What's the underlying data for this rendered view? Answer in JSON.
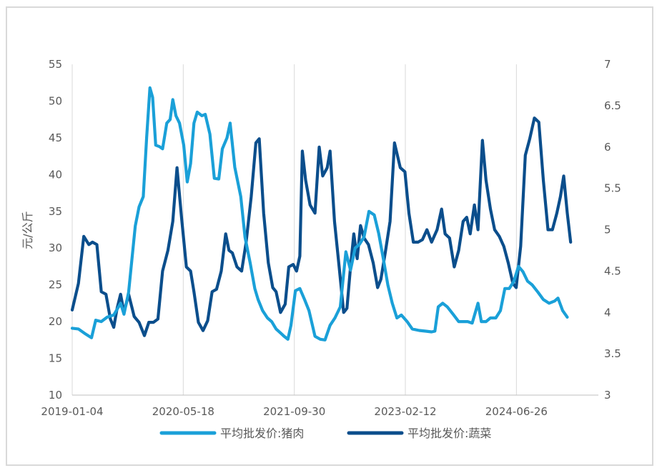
{
  "chart_data": {
    "type": "line",
    "title": "",
    "ylabel": "元/公斤",
    "ylim": [
      10,
      55
    ],
    "y_ticks": [
      "10",
      "15",
      "20",
      "25",
      "30",
      "35",
      "40",
      "45",
      "50",
      "55"
    ],
    "y2lim": [
      3,
      7
    ],
    "y2_ticks": [
      "3",
      "3.5",
      "4",
      "4.5",
      "5",
      "5.5",
      "6",
      "6.5",
      "7"
    ],
    "x_tick_labels": [
      "2019-01-04",
      "2020-05-18",
      "2021-09-30",
      "2023-02-12",
      "2024-06-26"
    ],
    "xlim": [
      "2019-01-04",
      "2025-06-30"
    ],
    "grid": "vertical",
    "legend_position": "bottom",
    "series": [
      {
        "name": "平均批发价:猪肉",
        "axis": "left",
        "color": "#1aa0d8",
        "points": [
          [
            "2019-01-04",
            19.1
          ],
          [
            "2019-02-01",
            19.0
          ],
          [
            "2019-03-01",
            18.4
          ],
          [
            "2019-04-01",
            17.8
          ],
          [
            "2019-04-20",
            20.2
          ],
          [
            "2019-05-15",
            20.0
          ],
          [
            "2019-06-10",
            20.6
          ],
          [
            "2019-07-10",
            20.9
          ],
          [
            "2019-08-10",
            22.5
          ],
          [
            "2019-08-25",
            21.0
          ],
          [
            "2019-09-15",
            24.0
          ],
          [
            "2019-10-15",
            33.0
          ],
          [
            "2019-11-01",
            35.6
          ],
          [
            "2019-11-20",
            37.0
          ],
          [
            "2019-12-05",
            45.0
          ],
          [
            "2019-12-20",
            51.8
          ],
          [
            "2020-01-01",
            50.5
          ],
          [
            "2020-01-15",
            44.0
          ],
          [
            "2020-02-01",
            43.8
          ],
          [
            "2020-02-15",
            43.5
          ],
          [
            "2020-03-05",
            47.0
          ],
          [
            "2020-03-20",
            47.5
          ],
          [
            "2020-04-01",
            50.2
          ],
          [
            "2020-04-15",
            48.0
          ],
          [
            "2020-05-01",
            47.0
          ],
          [
            "2020-05-20",
            44.0
          ],
          [
            "2020-06-05",
            39.0
          ],
          [
            "2020-06-20",
            41.5
          ],
          [
            "2020-07-05",
            47.0
          ],
          [
            "2020-07-20",
            48.5
          ],
          [
            "2020-08-10",
            48.0
          ],
          [
            "2020-08-25",
            48.2
          ],
          [
            "2020-09-15",
            45.5
          ],
          [
            "2020-10-05",
            39.5
          ],
          [
            "2020-10-25",
            39.4
          ],
          [
            "2020-11-10",
            43.5
          ],
          [
            "2020-12-01",
            45.0
          ],
          [
            "2020-12-15",
            47.0
          ],
          [
            "2021-01-05",
            41.0
          ],
          [
            "2021-02-01",
            37.0
          ],
          [
            "2021-02-20",
            31.5
          ],
          [
            "2021-03-15",
            28.0
          ],
          [
            "2021-04-05",
            24.5
          ],
          [
            "2021-04-20",
            23.0
          ],
          [
            "2021-05-10",
            21.5
          ],
          [
            "2021-06-01",
            20.5
          ],
          [
            "2021-06-20",
            20.0
          ],
          [
            "2021-07-10",
            19.0
          ],
          [
            "2021-08-01",
            18.4
          ],
          [
            "2021-08-15",
            18.0
          ],
          [
            "2021-09-01",
            17.6
          ],
          [
            "2021-09-15",
            19.5
          ],
          [
            "2021-10-05",
            24.2
          ],
          [
            "2021-10-25",
            24.5
          ],
          [
            "2021-11-15",
            23.0
          ],
          [
            "2021-12-05",
            21.5
          ],
          [
            "2022-01-01",
            18.0
          ],
          [
            "2022-01-25",
            17.6
          ],
          [
            "2022-02-15",
            17.5
          ],
          [
            "2022-03-10",
            19.5
          ],
          [
            "2022-04-01",
            20.5
          ],
          [
            "2022-04-25",
            22.0
          ],
          [
            "2022-05-20",
            29.5
          ],
          [
            "2022-06-10",
            27.0
          ],
          [
            "2022-07-01",
            30.0
          ],
          [
            "2022-07-20",
            30.5
          ],
          [
            "2022-08-10",
            31.5
          ],
          [
            "2022-09-01",
            35.0
          ],
          [
            "2022-09-25",
            34.5
          ],
          [
            "2022-10-15",
            32.0
          ],
          [
            "2022-11-05",
            28.5
          ],
          [
            "2022-11-25",
            25.0
          ],
          [
            "2022-12-15",
            22.5
          ],
          [
            "2023-01-05",
            20.5
          ],
          [
            "2023-01-25",
            20.9
          ],
          [
            "2023-02-20",
            20.0
          ],
          [
            "2023-03-15",
            19.0
          ],
          [
            "2023-04-15",
            18.8
          ],
          [
            "2023-05-15",
            18.7
          ],
          [
            "2023-06-10",
            18.6
          ],
          [
            "2023-06-25",
            18.7
          ],
          [
            "2023-07-10",
            22.0
          ],
          [
            "2023-07-30",
            22.5
          ],
          [
            "2023-08-20",
            22.0
          ],
          [
            "2023-09-15",
            21.0
          ],
          [
            "2023-10-10",
            20.0
          ],
          [
            "2023-11-01",
            20.0
          ],
          [
            "2023-11-20",
            20.0
          ],
          [
            "2023-12-10",
            19.8
          ],
          [
            "2024-01-05",
            22.5
          ],
          [
            "2024-01-20",
            20.0
          ],
          [
            "2024-02-10",
            20.0
          ],
          [
            "2024-03-01",
            20.5
          ],
          [
            "2024-03-25",
            20.5
          ],
          [
            "2024-04-15",
            21.5
          ],
          [
            "2024-05-05",
            24.5
          ],
          [
            "2024-05-25",
            24.5
          ],
          [
            "2024-06-15",
            25.5
          ],
          [
            "2024-07-05",
            27.5
          ],
          [
            "2024-07-25",
            26.8
          ],
          [
            "2024-08-15",
            25.5
          ],
          [
            "2024-09-05",
            25.0
          ],
          [
            "2024-10-01",
            24.0
          ],
          [
            "2024-10-25",
            23.0
          ],
          [
            "2024-11-20",
            22.5
          ],
          [
            "2024-12-15",
            22.8
          ],
          [
            "2024-12-30",
            23.2
          ],
          [
            "2025-01-20",
            21.5
          ],
          [
            "2025-02-10",
            20.6
          ]
        ]
      },
      {
        "name": "平均批发价:蔬菜",
        "axis": "right",
        "color": "#0b4e8c",
        "points": [
          [
            "2019-01-04",
            4.03
          ],
          [
            "2019-02-01",
            4.35
          ],
          [
            "2019-02-25",
            4.92
          ],
          [
            "2019-03-20",
            4.82
          ],
          [
            "2019-04-05",
            4.85
          ],
          [
            "2019-04-25",
            4.82
          ],
          [
            "2019-05-15",
            4.25
          ],
          [
            "2019-06-05",
            4.22
          ],
          [
            "2019-06-25",
            3.92
          ],
          [
            "2019-07-10",
            3.82
          ],
          [
            "2019-07-25",
            4.05
          ],
          [
            "2019-08-10",
            4.22
          ],
          [
            "2019-08-25",
            4.0
          ],
          [
            "2019-09-15",
            4.22
          ],
          [
            "2019-10-10",
            3.95
          ],
          [
            "2019-11-01",
            3.88
          ],
          [
            "2019-11-25",
            3.72
          ],
          [
            "2019-12-15",
            3.88
          ],
          [
            "2020-01-05",
            3.88
          ],
          [
            "2020-01-25",
            3.92
          ],
          [
            "2020-02-15",
            4.5
          ],
          [
            "2020-03-10",
            4.75
          ],
          [
            "2020-04-01",
            5.1
          ],
          [
            "2020-04-20",
            5.75
          ],
          [
            "2020-05-10",
            5.15
          ],
          [
            "2020-06-01",
            4.55
          ],
          [
            "2020-06-20",
            4.5
          ],
          [
            "2020-07-05",
            4.25
          ],
          [
            "2020-07-25",
            3.88
          ],
          [
            "2020-08-15",
            3.78
          ],
          [
            "2020-09-05",
            3.9
          ],
          [
            "2020-09-25",
            4.25
          ],
          [
            "2020-10-15",
            4.28
          ],
          [
            "2020-11-05",
            4.5
          ],
          [
            "2020-11-25",
            4.95
          ],
          [
            "2020-12-10",
            4.75
          ],
          [
            "2020-12-25",
            4.72
          ],
          [
            "2021-01-15",
            4.55
          ],
          [
            "2021-02-05",
            4.5
          ],
          [
            "2021-02-25",
            4.85
          ],
          [
            "2021-03-20",
            5.4
          ],
          [
            "2021-04-10",
            6.05
          ],
          [
            "2021-04-25",
            6.1
          ],
          [
            "2021-05-15",
            5.2
          ],
          [
            "2021-06-05",
            4.6
          ],
          [
            "2021-06-25",
            4.3
          ],
          [
            "2021-07-10",
            4.25
          ],
          [
            "2021-07-30",
            4.0
          ],
          [
            "2021-08-20",
            4.1
          ],
          [
            "2021-09-05",
            4.55
          ],
          [
            "2021-09-25",
            4.58
          ],
          [
            "2021-10-10",
            4.5
          ],
          [
            "2021-10-25",
            4.68
          ],
          [
            "2021-11-05",
            5.95
          ],
          [
            "2021-11-20",
            5.6
          ],
          [
            "2021-12-10",
            5.3
          ],
          [
            "2022-01-01",
            5.2
          ],
          [
            "2022-01-20",
            6.0
          ],
          [
            "2022-02-05",
            5.65
          ],
          [
            "2022-02-25",
            5.75
          ],
          [
            "2022-03-10",
            5.95
          ],
          [
            "2022-03-30",
            5.1
          ],
          [
            "2022-04-20",
            4.55
          ],
          [
            "2022-05-10",
            4.0
          ],
          [
            "2022-05-25",
            4.05
          ],
          [
            "2022-06-10",
            4.55
          ],
          [
            "2022-06-25",
            4.95
          ],
          [
            "2022-07-10",
            4.65
          ],
          [
            "2022-07-25",
            5.05
          ],
          [
            "2022-08-10",
            4.9
          ],
          [
            "2022-08-30",
            4.82
          ],
          [
            "2022-09-20",
            4.6
          ],
          [
            "2022-10-10",
            4.3
          ],
          [
            "2022-10-25",
            4.4
          ],
          [
            "2022-11-15",
            4.75
          ],
          [
            "2022-12-05",
            5.1
          ],
          [
            "2022-12-25",
            6.05
          ],
          [
            "2023-01-20",
            5.75
          ],
          [
            "2023-02-10",
            5.7
          ],
          [
            "2023-02-28",
            5.2
          ],
          [
            "2023-03-20",
            4.85
          ],
          [
            "2023-04-10",
            4.85
          ],
          [
            "2023-04-30",
            4.88
          ],
          [
            "2023-05-20",
            5.0
          ],
          [
            "2023-06-10",
            4.85
          ],
          [
            "2023-07-05",
            5.0
          ],
          [
            "2023-07-25",
            5.25
          ],
          [
            "2023-08-10",
            4.95
          ],
          [
            "2023-08-30",
            4.9
          ],
          [
            "2023-09-20",
            4.55
          ],
          [
            "2023-10-10",
            4.75
          ],
          [
            "2023-10-30",
            5.1
          ],
          [
            "2023-11-15",
            5.15
          ],
          [
            "2023-12-01",
            4.95
          ],
          [
            "2023-12-20",
            5.3
          ],
          [
            "2024-01-05",
            5.0
          ],
          [
            "2024-01-25",
            6.08
          ],
          [
            "2024-02-10",
            5.6
          ],
          [
            "2024-03-01",
            5.25
          ],
          [
            "2024-03-20",
            5.0
          ],
          [
            "2024-04-10",
            4.92
          ],
          [
            "2024-04-30",
            4.8
          ],
          [
            "2024-05-20",
            4.6
          ],
          [
            "2024-06-10",
            4.35
          ],
          [
            "2024-06-25",
            4.3
          ],
          [
            "2024-07-15",
            4.8
          ],
          [
            "2024-08-05",
            5.9
          ],
          [
            "2024-08-25",
            6.1
          ],
          [
            "2024-09-15",
            6.35
          ],
          [
            "2024-10-05",
            6.3
          ],
          [
            "2024-10-25",
            5.6
          ],
          [
            "2024-11-15",
            5.0
          ],
          [
            "2024-12-05",
            5.0
          ],
          [
            "2024-12-25",
            5.2
          ],
          [
            "2025-01-10",
            5.4
          ],
          [
            "2025-01-25",
            5.65
          ],
          [
            "2025-02-10",
            5.2
          ],
          [
            "2025-02-25",
            4.85
          ]
        ]
      }
    ]
  }
}
